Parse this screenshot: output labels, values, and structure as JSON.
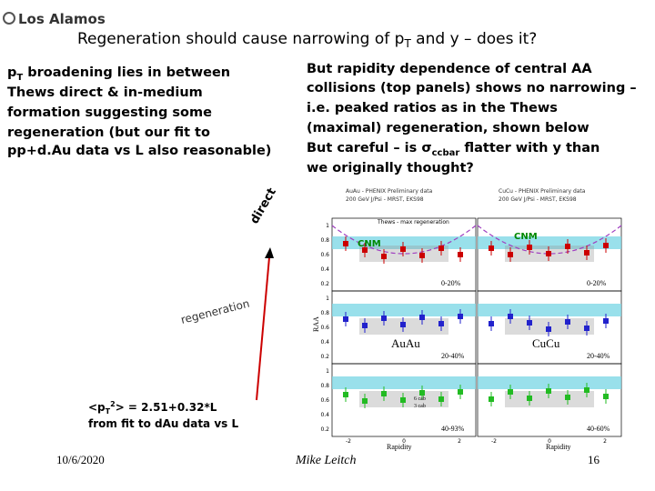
{
  "header": {
    "logo": "Los Alamos",
    "title": [
      "Regeneration should cause narrowing of p",
      "T",
      " and y – does it?"
    ]
  },
  "left_text": [
    [
      "p",
      "T",
      " broadening lies in between"
    ],
    [
      "Thews direct & in-medium"
    ],
    [
      "formation suggesting some"
    ],
    [
      "regeneration (but our fit to"
    ],
    [
      "pp+d.Au data vs L also reasonable)"
    ]
  ],
  "right_text": [
    [
      "But rapidity dependence of central AA"
    ],
    [
      "collisions (top panels) shows no narrowing –"
    ],
    [
      "i.e. peaked ratios as in the Thews"
    ],
    [
      "(maximal) regeneration, shown below"
    ],
    [
      "But careful – is σ",
      "ccbar",
      " flatter with y than"
    ],
    [
      "we originally thought?"
    ]
  ],
  "annotations": {
    "direct": "direct",
    "regeneration": "regeneration",
    "formula": [
      "<p",
      "T",
      "2",
      "> = 2.51+0.32*L"
    ],
    "formula_note": "from fit to dAu data vs L"
  },
  "figure": {
    "left_header": [
      "AuAu - PHENIX Preliminary data",
      "200 GeV J/Psi - MRST, EKS98"
    ],
    "right_header": [
      "CuCu - PHENIX Preliminary data",
      "200 GeV J/Psi - MRST, EKS98"
    ],
    "curve_label": "Thews - max regeneration",
    "cnm": "CNM",
    "centralities": [
      "0-20%",
      "0-20%",
      "20-40%",
      "20-40%",
      "40-93%",
      "40-60%"
    ],
    "system_labels": [
      "AuAu",
      "CuCu"
    ],
    "y_label": "RAA",
    "x_label": "Rapidity",
    "y_ticks": [
      1,
      0.8,
      0.6,
      0.4,
      0.2
    ],
    "x_ticks": [
      -2,
      0,
      2
    ],
    "legend": [
      "6 cab",
      "3 cab"
    ]
  },
  "footer": {
    "date": "10/6/2020",
    "author": "Mike Leitch",
    "page": "16"
  }
}
